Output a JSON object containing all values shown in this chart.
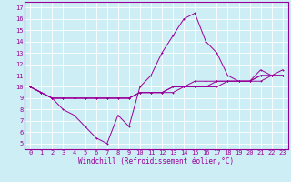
{
  "title": "",
  "xlabel": "Windchill (Refroidissement éolien,°C)",
  "ylabel": "",
  "background_color": "#cdeef5",
  "grid_color": "#ffffff",
  "line_color": "#990099",
  "x_ticks": [
    0,
    1,
    2,
    3,
    4,
    5,
    6,
    7,
    8,
    9,
    10,
    11,
    12,
    13,
    14,
    15,
    16,
    17,
    18,
    19,
    20,
    21,
    22,
    23
  ],
  "y_ticks": [
    5,
    6,
    7,
    8,
    9,
    10,
    11,
    12,
    13,
    14,
    15,
    16,
    17
  ],
  "ylim": [
    4.5,
    17.5
  ],
  "xlim": [
    -0.5,
    23.5
  ],
  "line1_x": [
    0,
    1,
    2,
    3,
    4,
    5,
    6,
    7,
    8,
    9,
    10,
    11,
    12,
    13,
    14,
    15,
    16,
    17,
    18,
    19,
    20,
    21,
    22,
    23
  ],
  "line1_y": [
    10,
    9.5,
    9,
    8,
    7.5,
    6.5,
    5.5,
    5,
    7.5,
    6.5,
    10,
    11,
    13,
    14.5,
    16,
    16.5,
    14,
    13,
    11,
    10.5,
    10.5,
    11.5,
    11,
    11.5
  ],
  "line2_x": [
    0,
    1,
    2,
    3,
    4,
    5,
    6,
    7,
    8,
    9,
    10,
    11,
    12,
    13,
    14,
    15,
    16,
    17,
    18,
    19,
    20,
    21,
    22,
    23
  ],
  "line2_y": [
    10,
    9.5,
    9,
    9,
    9,
    9,
    9,
    9,
    9,
    9,
    9.5,
    9.5,
    9.5,
    10,
    10,
    10,
    10,
    10,
    10.5,
    10.5,
    10.5,
    11,
    11,
    11
  ],
  "line3_x": [
    0,
    1,
    2,
    3,
    4,
    5,
    6,
    7,
    8,
    9,
    10,
    11,
    12,
    13,
    14,
    15,
    16,
    17,
    18,
    19,
    20,
    21,
    22,
    23
  ],
  "line3_y": [
    10,
    9.5,
    9,
    9,
    9,
    9,
    9,
    9,
    9,
    9,
    9.5,
    9.5,
    9.5,
    10,
    10,
    10.5,
    10.5,
    10.5,
    10.5,
    10.5,
    10.5,
    11,
    11,
    11
  ],
  "line4_x": [
    0,
    1,
    2,
    3,
    4,
    5,
    6,
    7,
    8,
    9,
    10,
    11,
    12,
    13,
    14,
    15,
    16,
    17,
    18,
    19,
    20,
    21,
    22,
    23
  ],
  "line4_y": [
    10,
    9.5,
    9,
    9,
    9,
    9,
    9,
    9,
    9,
    9,
    9.5,
    9.5,
    9.5,
    9.5,
    10,
    10,
    10,
    10.5,
    10.5,
    10.5,
    10.5,
    10.5,
    11,
    11
  ],
  "xlabel_fontsize": 5.5,
  "tick_fontsize": 5,
  "lw": 0.7,
  "ms": 2.0
}
